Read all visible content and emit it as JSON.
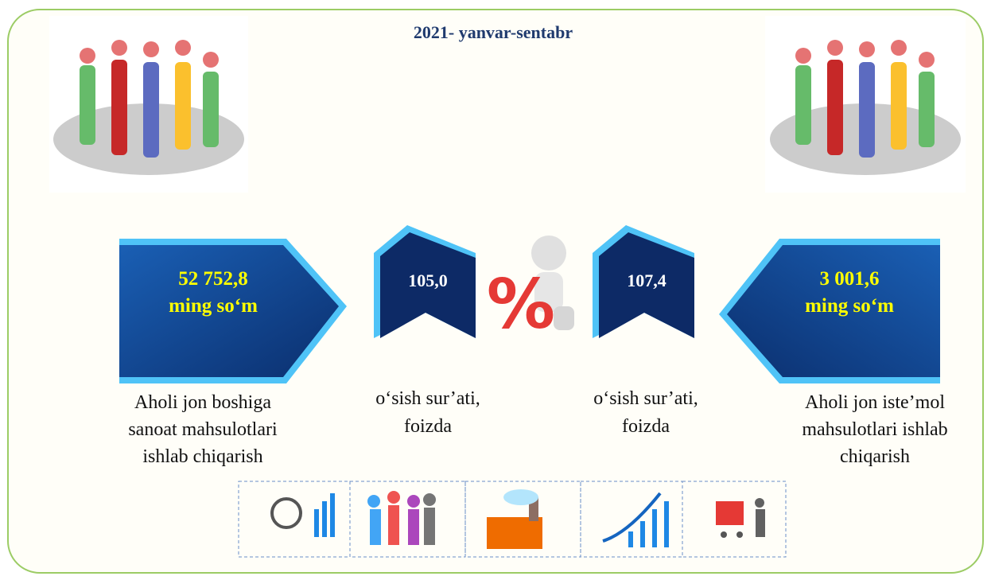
{
  "title": "2021- yanvar-sentabr",
  "left": {
    "value": "52 752,8",
    "unit": "ming so‘m",
    "label_lines": [
      "Aholi jon boshiga",
      "sanoat mahsulotlari",
      "ishlab chiqarish"
    ]
  },
  "growth_left": {
    "value": "105,0",
    "label_lines": [
      "o‘sish sur’ati,",
      "foizda"
    ]
  },
  "percent_symbol": "%",
  "growth_right": {
    "value": "107,4",
    "label_lines": [
      "o‘sish sur’ati,",
      "foizda"
    ]
  },
  "right": {
    "value": "3 001,6",
    "unit": "ming so‘m",
    "label_lines": [
      "Aholi jon iste’mol",
      "mahsulotlari ishlab",
      "chiqarish"
    ]
  }
}
